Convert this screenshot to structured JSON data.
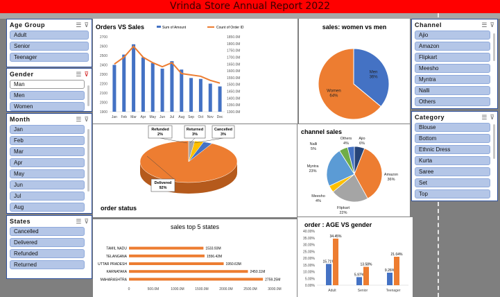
{
  "report_title": "Vrinda Store Annual Report 2022",
  "age_group": {
    "title": "Age Group",
    "items": [
      "Adult",
      "Senior",
      "Teenager"
    ]
  },
  "gender": {
    "title": "Gender",
    "items": [
      "Man",
      "Men",
      "Women"
    ]
  },
  "month": {
    "title": "Month",
    "items": [
      "Jan",
      "Feb",
      "Mar",
      "Apr",
      "May",
      "Jun",
      "Jul",
      "Aug"
    ]
  },
  "states": {
    "title": "States",
    "items": [
      "Cancelled",
      "Delivered",
      "Refunded",
      "Returned"
    ]
  },
  "channel": {
    "title": "Channel",
    "items": [
      "Ajio",
      "Amazon",
      "Flipkart",
      "Meesho",
      "Myntra",
      "Nalli",
      "Others"
    ]
  },
  "category": {
    "title": "Category",
    "items": [
      "Blouse",
      "Bottom",
      "Ethnic Dress",
      "Kurta",
      "Saree",
      "Set",
      "Top"
    ]
  },
  "colors": {
    "blue": "#4472c4",
    "orange": "#ed7d31",
    "gray": "#a5a5a5",
    "yellow": "#ffc000",
    "lightblue": "#5b9bd5",
    "green": "#70ad47",
    "navy": "#264478"
  },
  "chart_data": [
    {
      "type": "bar",
      "title": "Orders VS Sales",
      "categories": [
        "Jan",
        "Feb",
        "Mar",
        "Apr",
        "May",
        "Jun",
        "Jul",
        "Aug",
        "Sep",
        "Oct",
        "Nov",
        "Dec"
      ],
      "series": [
        {
          "name": "Sum of Amount",
          "kind": "bar",
          "values": [
            2400,
            2510,
            2620,
            2480,
            2420,
            2360,
            2440,
            2350,
            2260,
            2250,
            2200,
            2170
          ]
        },
        {
          "name": "Count of Order ID",
          "kind": "line",
          "values": [
            1650,
            1700,
            1780,
            1700,
            1660,
            1630,
            1660,
            1580,
            1570,
            1560,
            1530,
            1510
          ]
        }
      ],
      "y_ticks": [
        "1900",
        "2000",
        "2100",
        "2200",
        "2300",
        "2400",
        "2500",
        "2600",
        "2700"
      ],
      "y2_ticks": [
        "1300.0M",
        "1350.0M",
        "1400.0M",
        "1450.0M",
        "1500.0M",
        "1550.0M",
        "1600.0M",
        "1650.0M",
        "1700.0M",
        "1750.0M",
        "1800.0M",
        "1850.0M"
      ],
      "ylim": [
        1900,
        2700
      ],
      "y2lim": [
        1300,
        1850
      ],
      "legend": "top"
    },
    {
      "type": "pie",
      "title": "sales: women vs men",
      "slices": [
        {
          "name": "Men",
          "label": "Men\n36%",
          "value": 36
        },
        {
          "name": "Women",
          "label": "Women\n64%",
          "value": 64
        }
      ]
    },
    {
      "type": "pie",
      "title": "order status",
      "slices": [
        {
          "name": "Delivered",
          "label": "Delivered\n92%",
          "value": 92
        },
        {
          "name": "Refunded",
          "label": "Refunded\n2%",
          "value": 2
        },
        {
          "name": "Returned",
          "label": "Returned\n3%",
          "value": 3
        },
        {
          "name": "Cancelled",
          "label": "Cancelled\n3%",
          "value": 3
        }
      ]
    },
    {
      "type": "pie",
      "title": "channel sales",
      "slices": [
        {
          "name": "Ajio",
          "label": "Ajio\n6%",
          "value": 6
        },
        {
          "name": "Amazon",
          "label": "Amazon\n36%",
          "value": 36
        },
        {
          "name": "Flipkart",
          "label": "Flipkart\n22%",
          "value": 22
        },
        {
          "name": "Meesho",
          "label": "Meesho\n4%",
          "value": 4
        },
        {
          "name": "Myntra",
          "label": "Myntra\n23%",
          "value": 23
        },
        {
          "name": "Nalli",
          "label": "Nalli\n5%",
          "value": 5
        },
        {
          "name": "Others",
          "label": "Others\n4%",
          "value": 4
        }
      ]
    },
    {
      "type": "bar",
      "orientation": "horizontal",
      "title": "sales top 5 states",
      "categories": [
        "TAMIL NADU",
        "TELANGANA",
        "UTTAR PRADESH",
        "KARNATAKA",
        "MAHARASHTRA"
      ],
      "values": [
        1533.93,
        1556.42,
        1950.63,
        2450.11,
        2759.25
      ],
      "value_labels": [
        "1533.93M",
        "1556.42M",
        "1950.63M",
        "2450.11M",
        "2759.25M"
      ],
      "x_ticks": [
        "0",
        "500.0M",
        "1000.0M",
        "1500.0M",
        "2000.0M",
        "2500.0M",
        "3000.0M"
      ],
      "xlim": [
        0,
        3000
      ]
    },
    {
      "type": "bar",
      "title": "order : AGE VS gender",
      "categories": [
        "Adult",
        "Senior",
        "Teenager"
      ],
      "series": [
        {
          "values": [
            15.71,
            5.97,
            9.26
          ],
          "labels": [
            "15.71%",
            "5.97%",
            "9.26%"
          ]
        },
        {
          "values": [
            34.45,
            13.58,
            21.04
          ],
          "labels": [
            "34.45%",
            "13.58%",
            "21.04%"
          ]
        }
      ],
      "y_ticks": [
        "0.00%",
        "5.00%",
        "10.00%",
        "15.00%",
        "20.00%",
        "25.00%",
        "30.00%",
        "35.00%",
        "40.00%"
      ],
      "ylim": [
        0,
        40
      ]
    }
  ]
}
